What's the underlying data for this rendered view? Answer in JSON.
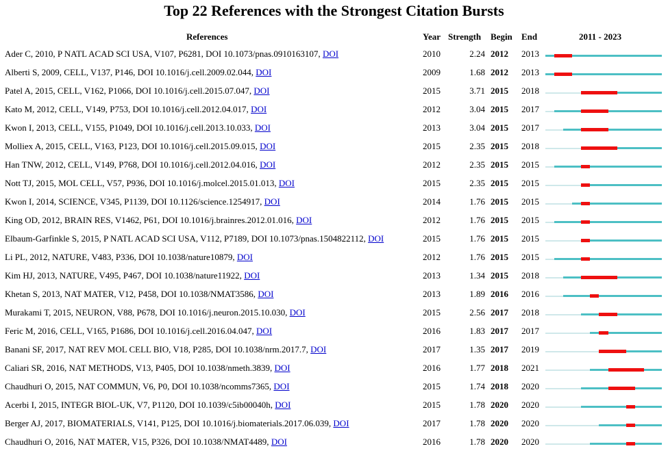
{
  "chart_data": {
    "type": "table",
    "title": "Top 22 References with the Strongest Citation Bursts",
    "columns": {
      "references": "References",
      "year": "Year",
      "strength": "Strength",
      "begin": "Begin",
      "end": "End",
      "range_label": "2011 - 2023"
    },
    "range": [
      2011,
      2023
    ],
    "colors": {
      "burst": "#ee1010",
      "active": "#4cbfc4",
      "inactive": "#cfe8ea",
      "link": "#0000cc"
    },
    "link_text": "DOI",
    "rows": [
      {
        "ref": "Ader C, 2010, P NATL ACAD SCI USA, V107, P6281, DOI 10.1073/pnas.0910163107,",
        "year": "2010",
        "strength": "2.24",
        "begin": "2012",
        "end": "2013"
      },
      {
        "ref": "Alberti S, 2009, CELL, V137, P146, DOI 10.1016/j.cell.2009.02.044,",
        "year": "2009",
        "strength": "1.68",
        "begin": "2012",
        "end": "2013"
      },
      {
        "ref": "Patel A, 2015, CELL, V162, P1066, DOI 10.1016/j.cell.2015.07.047,",
        "year": "2015",
        "strength": "3.71",
        "begin": "2015",
        "end": "2018"
      },
      {
        "ref": "Kato M, 2012, CELL, V149, P753, DOI 10.1016/j.cell.2012.04.017,",
        "year": "2012",
        "strength": "3.04",
        "begin": "2015",
        "end": "2017"
      },
      {
        "ref": "Kwon I, 2013, CELL, V155, P1049, DOI 10.1016/j.cell.2013.10.033,",
        "year": "2013",
        "strength": "3.04",
        "begin": "2015",
        "end": "2017"
      },
      {
        "ref": "Molliex A, 2015, CELL, V163, P123, DOI 10.1016/j.cell.2015.09.015,",
        "year": "2015",
        "strength": "2.35",
        "begin": "2015",
        "end": "2018"
      },
      {
        "ref": "Han TNW, 2012, CELL, V149, P768, DOI 10.1016/j.cell.2012.04.016,",
        "year": "2012",
        "strength": "2.35",
        "begin": "2015",
        "end": "2015"
      },
      {
        "ref": "Nott TJ, 2015, MOL CELL, V57, P936, DOI 10.1016/j.molcel.2015.01.013,",
        "year": "2015",
        "strength": "2.35",
        "begin": "2015",
        "end": "2015"
      },
      {
        "ref": "Kwon I, 2014, SCIENCE, V345, P1139, DOI 10.1126/science.1254917,",
        "year": "2014",
        "strength": "1.76",
        "begin": "2015",
        "end": "2015"
      },
      {
        "ref": "King OD, 2012, BRAIN RES, V1462, P61, DOI 10.1016/j.brainres.2012.01.016,",
        "year": "2012",
        "strength": "1.76",
        "begin": "2015",
        "end": "2015"
      },
      {
        "ref": "Elbaum-Garfinkle S, 2015, P NATL ACAD SCI USA, V112, P7189, DOI 10.1073/pnas.1504822112,",
        "year": "2015",
        "strength": "1.76",
        "begin": "2015",
        "end": "2015"
      },
      {
        "ref": "Li PL, 2012, NATURE, V483, P336, DOI 10.1038/nature10879,",
        "year": "2012",
        "strength": "1.76",
        "begin": "2015",
        "end": "2015"
      },
      {
        "ref": "Kim HJ, 2013, NATURE, V495, P467, DOI 10.1038/nature11922,",
        "year": "2013",
        "strength": "1.34",
        "begin": "2015",
        "end": "2018"
      },
      {
        "ref": "Khetan S, 2013, NAT MATER, V12, P458, DOI 10.1038/NMAT3586,",
        "year": "2013",
        "strength": "1.89",
        "begin": "2016",
        "end": "2016"
      },
      {
        "ref": "Murakami T, 2015, NEURON, V88, P678, DOI 10.1016/j.neuron.2015.10.030,",
        "year": "2015",
        "strength": "2.56",
        "begin": "2017",
        "end": "2018"
      },
      {
        "ref": "Feric M, 2016, CELL, V165, P1686, DOI 10.1016/j.cell.2016.04.047,",
        "year": "2016",
        "strength": "1.83",
        "begin": "2017",
        "end": "2017"
      },
      {
        "ref": "Banani SF, 2017, NAT REV MOL CELL BIO, V18, P285, DOI 10.1038/nrm.2017.7,",
        "year": "2017",
        "strength": "1.35",
        "begin": "2017",
        "end": "2019"
      },
      {
        "ref": "Caliari SR, 2016, NAT METHODS, V13, P405, DOI 10.1038/nmeth.3839,",
        "year": "2016",
        "strength": "1.77",
        "begin": "2018",
        "end": "2021"
      },
      {
        "ref": "Chaudhuri O, 2015, NAT COMMUN, V6, P0, DOI 10.1038/ncomms7365,",
        "year": "2015",
        "strength": "1.74",
        "begin": "2018",
        "end": "2020"
      },
      {
        "ref": "Acerbi I, 2015, INTEGR BIOL-UK, V7, P1120, DOI 10.1039/c5ib00040h,",
        "year": "2015",
        "strength": "1.78",
        "begin": "2020",
        "end": "2020"
      },
      {
        "ref": "Berger AJ, 2017, BIOMATERIALS, V141, P125, DOI 10.1016/j.biomaterials.2017.06.039,",
        "year": "2017",
        "strength": "1.78",
        "begin": "2020",
        "end": "2020"
      },
      {
        "ref": "Chaudhuri O, 2016, NAT MATER, V15, P326, DOI 10.1038/NMAT4489,",
        "year": "2016",
        "strength": "1.78",
        "begin": "2020",
        "end": "2020"
      }
    ]
  }
}
